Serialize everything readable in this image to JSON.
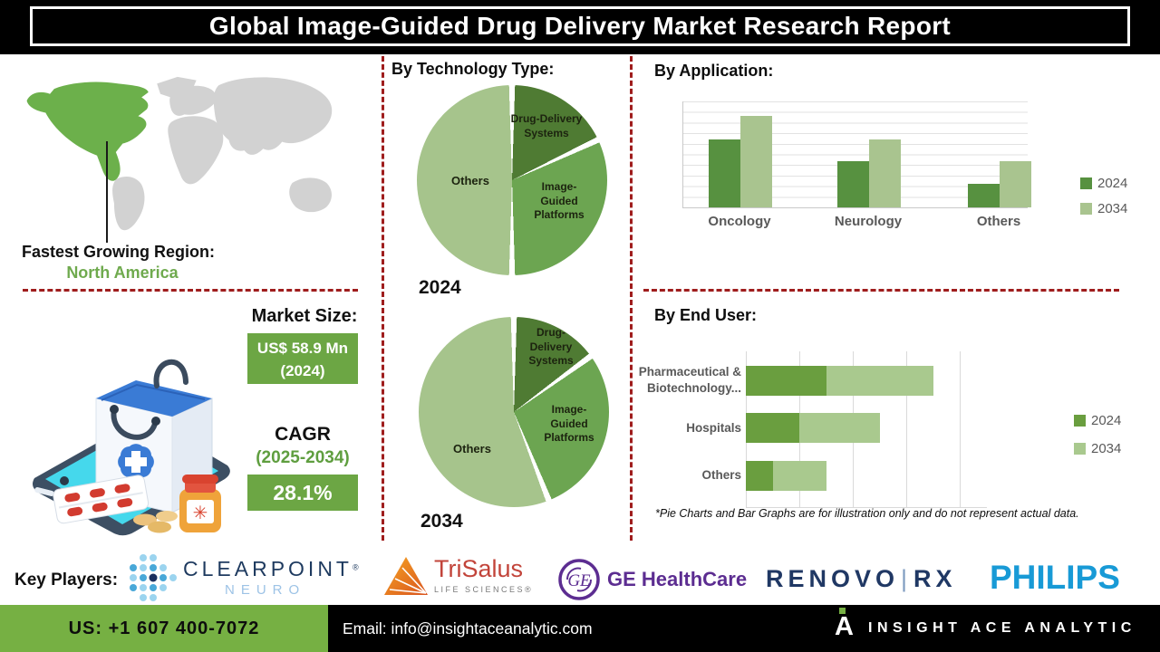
{
  "header": {
    "title": "Global Image-Guided Drug Delivery Market Research Report"
  },
  "fastest_region": {
    "label": "Fastest Growing Region:",
    "value": "North America"
  },
  "market": {
    "title": "Market Size:",
    "size_value": "US$ 58.9 Mn",
    "size_year": "(2024)",
    "cagr_label": "CAGR",
    "cagr_period": "(2025-2034)",
    "cagr_value": "28.1%"
  },
  "sections": {
    "technology": "By Technology Type:",
    "application": "By Application:",
    "end_user": "By End User:"
  },
  "note": "*Pie Charts and Bar Graphs are for illustration only and do not represent actual data.",
  "key_players": {
    "label": "Key Players:",
    "clearpoint": {
      "name": "CLEARPOINT",
      "mark": "®",
      "sub": "NEURO"
    },
    "trisalus": {
      "name": "TriSalus",
      "sub": "LIFE SCIENCES®"
    },
    "ge": {
      "monogram": "GE",
      "name": "GE HealthCare"
    },
    "renovorx": {
      "part1": "RENOVO",
      "divider": "|",
      "part2": "RX"
    },
    "philips": {
      "name": "PHILIPS"
    }
  },
  "footer": {
    "phone": "US: +1 607 400-7072",
    "email": "Email: info@insightaceanalytic.com",
    "brand": "INSIGHT ACE ANALYTIC",
    "glyph": "A"
  },
  "colors": {
    "pie_dark": "#4f7b33",
    "pie_mid": "#6ca551",
    "pie_light": "#a6c48c",
    "bar_dark": "#579140",
    "bar_light": "#a9c48f",
    "accent_red": "#9f1d1d",
    "box_green": "#6ca644",
    "footer_green": "#76b043",
    "map_green": "#6cb04b",
    "map_gray": "#d2d2d2",
    "label_gray": "#595959"
  },
  "chart_data": [
    {
      "type": "pie",
      "title": "By Technology Type:",
      "year": "2024",
      "labels": [
        "Drug-Delivery Systems",
        "Image-Guided Platforms",
        "Others"
      ],
      "values": [
        18,
        32,
        50
      ],
      "colors": [
        "#4f7b33",
        "#6ca551",
        "#a6c48c"
      ]
    },
    {
      "type": "pie",
      "title": "By Technology Type:",
      "year": "2034",
      "labels": [
        "Drug-Delivery Systems",
        "Image-Guided Platforms",
        "Others"
      ],
      "values": [
        15,
        29,
        56
      ],
      "colors": [
        "#4f7b33",
        "#6ca551",
        "#a6c48c"
      ]
    },
    {
      "type": "bar",
      "title": "By Application:",
      "categories": [
        "Oncology",
        "Neurology",
        "Others"
      ],
      "series": [
        {
          "name": "2024",
          "color": "#579140",
          "values": [
            6.4,
            4.4,
            2.2
          ]
        },
        {
          "name": "2034",
          "color": "#a9c48f",
          "values": [
            8.6,
            6.4,
            4.4
          ]
        }
      ],
      "ylim": [
        0,
        10
      ],
      "grid": true,
      "legend_position": "right"
    },
    {
      "type": "bar",
      "subtype": "horizontal-stacked",
      "title": "By End User:",
      "categories": [
        "Pharmaceutical & Biotechnology...",
        "Hospitals",
        "Others"
      ],
      "series": [
        {
          "name": "2024",
          "color": "#6a9e3f",
          "values": [
            1.5,
            1.0,
            0.5
          ]
        },
        {
          "name": "2034",
          "color": "#a9c98e",
          "values": [
            2.0,
            1.5,
            1.0
          ]
        }
      ],
      "xlim": [
        0,
        4.5
      ],
      "grid": true,
      "legend_position": "right"
    }
  ]
}
